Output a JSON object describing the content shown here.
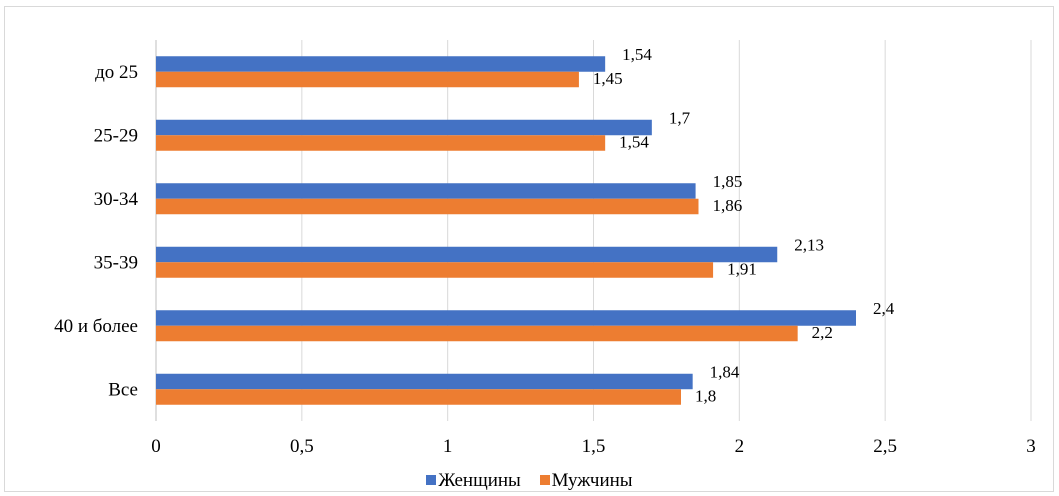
{
  "chart_data": {
    "type": "bar",
    "orientation": "horizontal",
    "categories": [
      "до 25",
      "25-29",
      "30-34",
      "35-39",
      "40 и более",
      "Все"
    ],
    "series": [
      {
        "name": "Женщины",
        "color": "#4472c4",
        "values": [
          1.54,
          1.7,
          1.85,
          2.13,
          2.4,
          1.84
        ],
        "labels": [
          "1,54",
          "1,7",
          "1,85",
          "2,13",
          "2,4",
          "1,84"
        ]
      },
      {
        "name": "Мужчины",
        "color": "#ed7d31",
        "values": [
          1.45,
          1.54,
          1.86,
          1.91,
          2.2,
          1.8
        ],
        "labels": [
          "1,45",
          "1,54",
          "1,86",
          "1,91",
          "2,2",
          "1,8"
        ]
      }
    ],
    "xlim": [
      0,
      3
    ],
    "x_ticks": [
      0,
      0.5,
      1,
      1.5,
      2,
      2.5,
      3
    ],
    "x_tick_labels": [
      "0",
      "0,5",
      "1",
      "1,5",
      "2",
      "2,5",
      "3"
    ],
    "grid": "vertical",
    "legend_position": "bottom"
  }
}
